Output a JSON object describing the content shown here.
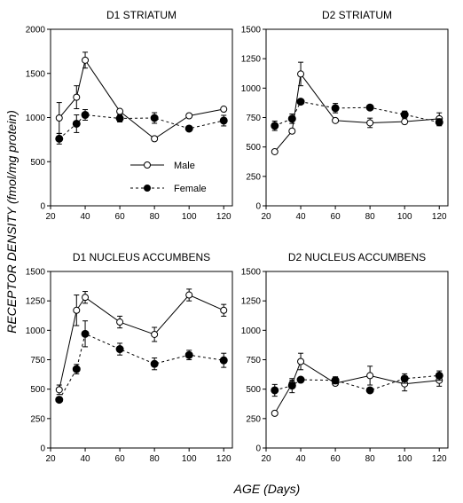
{
  "figure": {
    "ylabel": "RECEPTOR DENSITY (fmol/mg protein)",
    "xlabel": "AGE (Days)"
  },
  "legend": {
    "male": "Male",
    "female": "Female"
  },
  "chart_data": [
    {
      "type": "line",
      "title": "D1 STRIATUM",
      "xlim": [
        20,
        125
      ],
      "ylim": [
        0,
        2000
      ],
      "xticks": [
        20,
        40,
        60,
        80,
        100,
        120
      ],
      "yticks": [
        0,
        500,
        1000,
        1500,
        2000
      ],
      "series": [
        {
          "name": "Male",
          "marker": "open-circle",
          "dash": "solid",
          "x": [
            25,
            35,
            40,
            60,
            80,
            100,
            120
          ],
          "y": [
            995,
            1230,
            1650,
            1070,
            760,
            1020,
            1095
          ],
          "err": [
            175,
            130,
            90,
            0,
            0,
            0,
            0
          ]
        },
        {
          "name": "Female",
          "marker": "filled-circle",
          "dash": "dashed",
          "x": [
            25,
            35,
            40,
            60,
            80,
            100,
            120
          ],
          "y": [
            760,
            930,
            1030,
            990,
            995,
            875,
            965
          ],
          "err": [
            60,
            100,
            60,
            40,
            60,
            0,
            60
          ]
        }
      ]
    },
    {
      "type": "line",
      "title": "D2 STRIATUM",
      "xlim": [
        20,
        125
      ],
      "ylim": [
        0,
        1500
      ],
      "xticks": [
        20,
        40,
        60,
        80,
        100,
        120
      ],
      "yticks": [
        0,
        250,
        500,
        750,
        1000,
        1250,
        1500
      ],
      "series": [
        {
          "name": "Male",
          "marker": "open-circle",
          "dash": "solid",
          "x": [
            25,
            35,
            40,
            60,
            80,
            100,
            120
          ],
          "y": [
            460,
            635,
            1120,
            725,
            705,
            715,
            740
          ],
          "err": [
            0,
            0,
            100,
            0,
            40,
            0,
            50
          ]
        },
        {
          "name": "Female",
          "marker": "filled-circle",
          "dash": "dashed",
          "x": [
            25,
            35,
            40,
            60,
            80,
            100,
            120
          ],
          "y": [
            680,
            740,
            885,
            830,
            835,
            775,
            710
          ],
          "err": [
            40,
            40,
            0,
            40,
            0,
            30,
            30
          ]
        }
      ]
    },
    {
      "type": "line",
      "title": "D1 NUCLEUS ACCUMBENS",
      "xlim": [
        20,
        125
      ],
      "ylim": [
        0,
        1500
      ],
      "xticks": [
        20,
        40,
        60,
        80,
        100,
        120
      ],
      "yticks": [
        0,
        250,
        500,
        750,
        1000,
        1250,
        1500
      ],
      "series": [
        {
          "name": "Male",
          "marker": "open-circle",
          "dash": "solid",
          "x": [
            25,
            35,
            40,
            60,
            80,
            100,
            120
          ],
          "y": [
            495,
            1170,
            1280,
            1070,
            965,
            1300,
            1170
          ],
          "err": [
            40,
            130,
            50,
            50,
            60,
            50,
            50
          ]
        },
        {
          "name": "Female",
          "marker": "filled-circle",
          "dash": "dashed",
          "x": [
            25,
            35,
            40,
            60,
            80,
            100,
            120
          ],
          "y": [
            410,
            670,
            970,
            840,
            715,
            790,
            745
          ],
          "err": [
            0,
            40,
            110,
            50,
            50,
            40,
            60
          ]
        }
      ]
    },
    {
      "type": "line",
      "title": "D2 NUCLEUS ACCUMBENS",
      "xlim": [
        20,
        125
      ],
      "ylim": [
        0,
        1500
      ],
      "xticks": [
        20,
        40,
        60,
        80,
        100,
        120
      ],
      "yticks": [
        0,
        250,
        500,
        750,
        1000,
        1250,
        1500
      ],
      "series": [
        {
          "name": "Male",
          "marker": "open-circle",
          "dash": "solid",
          "x": [
            25,
            35,
            40,
            60,
            80,
            100,
            120
          ],
          "y": [
            295,
            545,
            735,
            550,
            615,
            545,
            575
          ],
          "err": [
            0,
            30,
            70,
            0,
            80,
            60,
            50
          ]
        },
        {
          "name": "Female",
          "marker": "filled-circle",
          "dash": "dashed",
          "x": [
            25,
            35,
            40,
            60,
            80,
            100,
            120
          ],
          "y": [
            490,
            530,
            580,
            575,
            490,
            590,
            615
          ],
          "err": [
            50,
            60,
            0,
            30,
            0,
            40,
            40
          ]
        }
      ]
    }
  ]
}
